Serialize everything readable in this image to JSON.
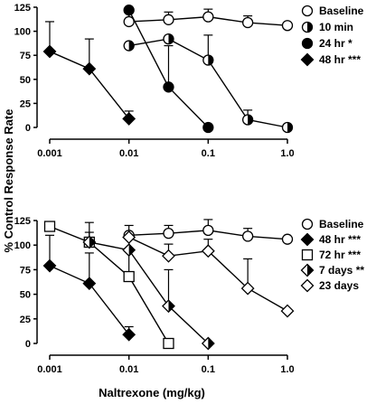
{
  "ylabel": "% Control Response Rate",
  "xlabel": "Naltrexone (mg/kg)",
  "chart_data": [
    {
      "type": "line",
      "x_scale": "log",
      "xlim": [
        0.001,
        1.0
      ],
      "ylim": [
        0,
        125
      ],
      "x_ticks": [
        "0.001",
        "0.01",
        "0.1",
        "1.0"
      ],
      "y_ticks": [
        "0",
        "25",
        "50",
        "75",
        "100",
        "125"
      ],
      "legend_position": "top-right",
      "series": [
        {
          "name": "Baseline",
          "marker": "circle-open",
          "x": [
            0.01,
            0.0316,
            0.1,
            0.316,
            1.0
          ],
          "y": [
            110,
            112,
            115,
            109,
            106
          ],
          "err": [
            10,
            8,
            8,
            7,
            0
          ]
        },
        {
          "name": "10 min",
          "marker": "circle-half",
          "x": [
            0.01,
            0.0316,
            0.1,
            0.316,
            1.0
          ],
          "y": [
            85,
            92,
            70,
            8,
            0
          ],
          "err": [
            0,
            0,
            26,
            10,
            0
          ]
        },
        {
          "name": "24 hr",
          "stars": "*",
          "marker": "circle-filled",
          "x": [
            0.01,
            0.0316,
            0.1
          ],
          "y": [
            122,
            42,
            0
          ],
          "err": [
            0,
            43,
            0
          ]
        },
        {
          "name": "48 hr",
          "stars": "***",
          "marker": "diamond-filled",
          "x": [
            0.001,
            0.00316,
            0.01
          ],
          "y": [
            79,
            61,
            9
          ],
          "err": [
            31,
            31,
            8
          ]
        }
      ]
    },
    {
      "type": "line",
      "x_scale": "log",
      "xlim": [
        0.001,
        1.0
      ],
      "ylim": [
        0,
        125
      ],
      "x_ticks": [
        "0.001",
        "0.01",
        "0.1",
        "1.0"
      ],
      "y_ticks": [
        "0",
        "25",
        "50",
        "75",
        "100",
        "125"
      ],
      "legend_position": "right",
      "series": [
        {
          "name": "Baseline",
          "marker": "circle-open",
          "x": [
            0.01,
            0.0316,
            0.1,
            0.316,
            1.0
          ],
          "y": [
            110,
            112,
            115,
            109,
            106
          ],
          "err": [
            10,
            8,
            11,
            8,
            0
          ]
        },
        {
          "name": "48 hr",
          "stars": "***",
          "marker": "diamond-filled",
          "x": [
            0.001,
            0.00316,
            0.01
          ],
          "y": [
            79,
            61,
            9
          ],
          "err": [
            31,
            31,
            8
          ]
        },
        {
          "name": "72 hr",
          "stars": "***",
          "marker": "square-open",
          "x": [
            0.001,
            0.00316,
            0.01,
            0.0316
          ],
          "y": [
            119,
            103,
            68,
            0
          ],
          "err": [
            0,
            20,
            40,
            0
          ]
        },
        {
          "name": "7 days",
          "stars": "**",
          "marker": "diamond-half",
          "x": [
            0.00316,
            0.01,
            0.0316,
            0.1
          ],
          "y": [
            103,
            95,
            38,
            0
          ],
          "err": [
            10,
            12,
            37,
            0
          ]
        },
        {
          "name": "23 days",
          "marker": "diamond-open",
          "x": [
            0.01,
            0.0316,
            0.1,
            0.316,
            1.0
          ],
          "y": [
            108,
            89,
            94,
            56,
            33
          ],
          "err": [
            0,
            12,
            12,
            30,
            0
          ]
        }
      ]
    }
  ]
}
